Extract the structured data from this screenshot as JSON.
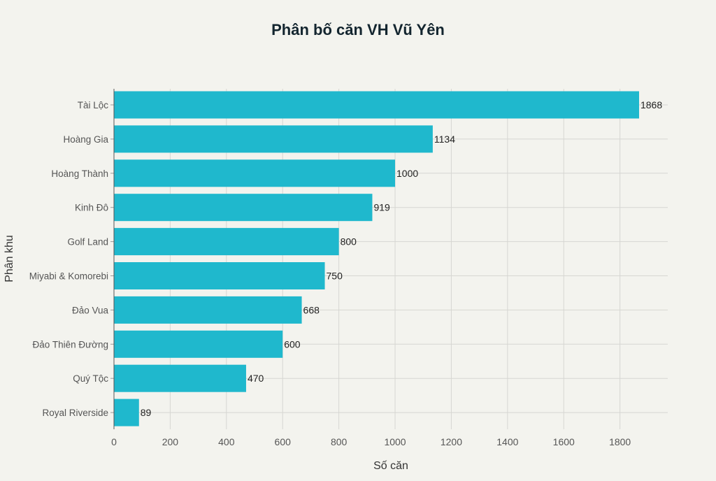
{
  "chart_data": {
    "type": "bar",
    "orientation": "horizontal",
    "title": "Phân bố căn VH Vũ Yên",
    "xlabel": "Số căn",
    "ylabel": "Phân khu",
    "categories": [
      "Tài Lộc",
      "Hoàng Gia",
      "Hoàng Thành",
      "Kinh Đô",
      "Golf Land",
      "Miyabi & Komorebi",
      "Đảo Vua",
      "Đảo Thiên Đường",
      "Quý Tộc",
      "Royal Riverside"
    ],
    "values": [
      1868,
      1134,
      1000,
      919,
      800,
      750,
      668,
      600,
      470,
      89
    ],
    "xlim": [
      0,
      1970
    ],
    "xticks": [
      0,
      200,
      400,
      600,
      800,
      1000,
      1200,
      1400,
      1600,
      1800
    ],
    "grid": true,
    "bar_color": "#1FB8CD",
    "data_labels": true
  }
}
